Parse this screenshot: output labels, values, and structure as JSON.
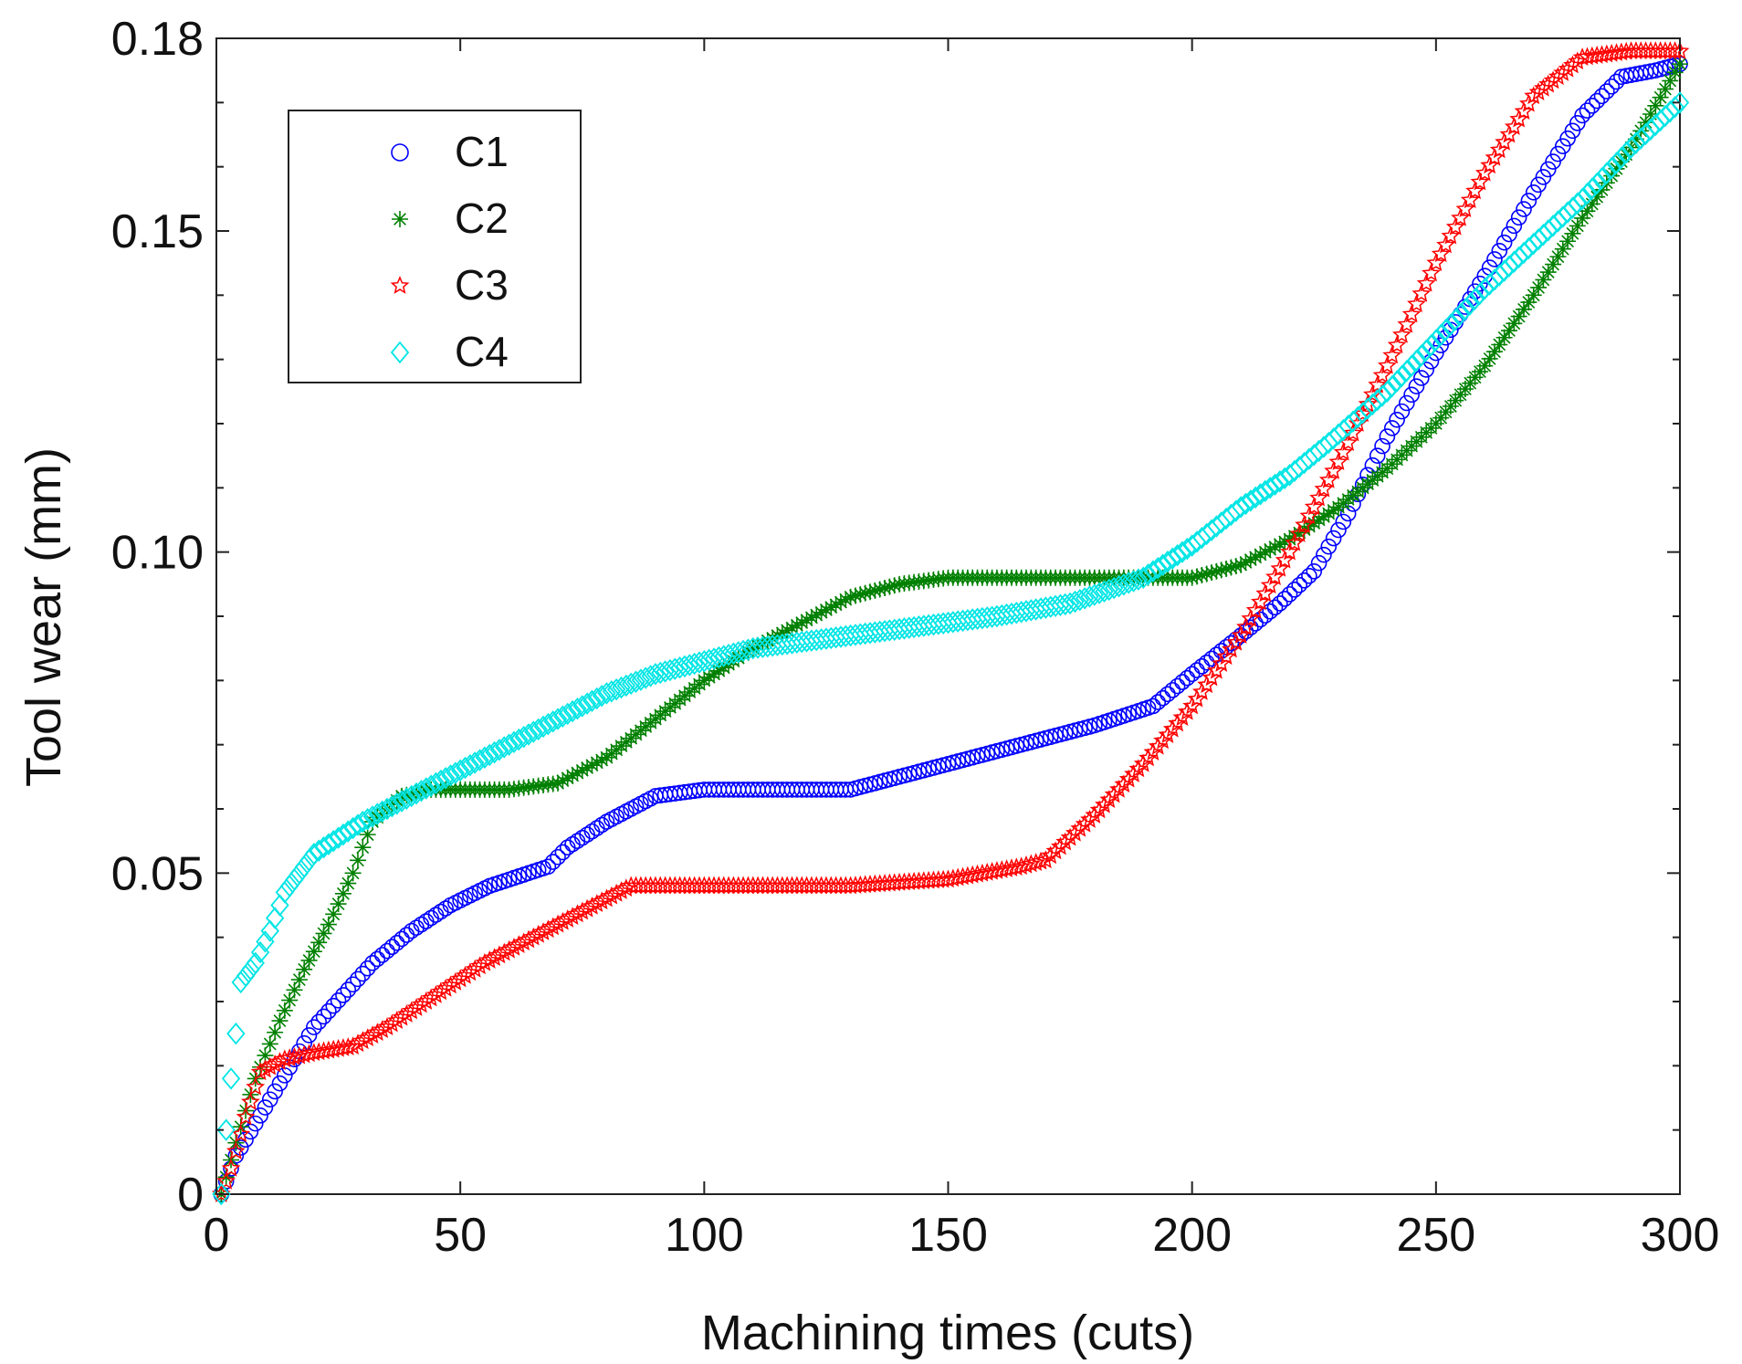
{
  "chart_data": {
    "type": "scatter",
    "title": "",
    "xlabel": "Machining times (cuts)",
    "ylabel": "Tool wear (mm)",
    "xlim": [
      0,
      300
    ],
    "ylim": [
      0,
      0.18
    ],
    "xticks": [
      0,
      50,
      100,
      150,
      200,
      250,
      300
    ],
    "xtick_labels": [
      "0",
      "50",
      "100",
      "150",
      "200",
      "250",
      "300"
    ],
    "yticks": [
      0,
      0.05,
      0.1,
      0.15,
      0.18
    ],
    "ytick_labels": [
      "0",
      "0.05",
      "0.10",
      "0.15",
      "0.18"
    ],
    "grid": false,
    "legend_position": "top-left",
    "series": [
      {
        "name": "C1",
        "marker": "circle",
        "color": "#0000ff",
        "points": [
          [
            1,
            0
          ],
          [
            4,
            0.006
          ],
          [
            8,
            0.011
          ],
          [
            12,
            0.016
          ],
          [
            16,
            0.021
          ],
          [
            20,
            0.026
          ],
          [
            26,
            0.031
          ],
          [
            32,
            0.036
          ],
          [
            40,
            0.041
          ],
          [
            48,
            0.045
          ],
          [
            56,
            0.048
          ],
          [
            64,
            0.05
          ],
          [
            68,
            0.051
          ],
          [
            72,
            0.054
          ],
          [
            80,
            0.058
          ],
          [
            90,
            0.062
          ],
          [
            100,
            0.063
          ],
          [
            110,
            0.063
          ],
          [
            120,
            0.063
          ],
          [
            130,
            0.063
          ],
          [
            140,
            0.065
          ],
          [
            150,
            0.067
          ],
          [
            160,
            0.069
          ],
          [
            170,
            0.071
          ],
          [
            180,
            0.073
          ],
          [
            192,
            0.076
          ],
          [
            200,
            0.081
          ],
          [
            210,
            0.087
          ],
          [
            218,
            0.092
          ],
          [
            225,
            0.097
          ],
          [
            232,
            0.106
          ],
          [
            240,
            0.118
          ],
          [
            250,
            0.131
          ],
          [
            260,
            0.143
          ],
          [
            270,
            0.156
          ],
          [
            280,
            0.168
          ],
          [
            288,
            0.174
          ],
          [
            295,
            0.175
          ],
          [
            300,
            0.176
          ]
        ]
      },
      {
        "name": "C2",
        "marker": "asterisk",
        "color": "#008000",
        "points": [
          [
            1,
            0
          ],
          [
            4,
            0.008
          ],
          [
            8,
            0.018
          ],
          [
            13,
            0.027
          ],
          [
            18,
            0.035
          ],
          [
            23,
            0.042
          ],
          [
            28,
            0.05
          ],
          [
            32,
            0.058
          ],
          [
            38,
            0.062
          ],
          [
            44,
            0.063
          ],
          [
            50,
            0.063
          ],
          [
            60,
            0.063
          ],
          [
            70,
            0.064
          ],
          [
            80,
            0.068
          ],
          [
            90,
            0.074
          ],
          [
            100,
            0.08
          ],
          [
            110,
            0.085
          ],
          [
            120,
            0.089
          ],
          [
            130,
            0.093
          ],
          [
            140,
            0.095
          ],
          [
            150,
            0.096
          ],
          [
            160,
            0.096
          ],
          [
            170,
            0.096
          ],
          [
            180,
            0.096
          ],
          [
            190,
            0.096
          ],
          [
            200,
            0.096
          ],
          [
            210,
            0.098
          ],
          [
            220,
            0.102
          ],
          [
            230,
            0.107
          ],
          [
            240,
            0.113
          ],
          [
            250,
            0.12
          ],
          [
            260,
            0.129
          ],
          [
            270,
            0.14
          ],
          [
            280,
            0.152
          ],
          [
            290,
            0.163
          ],
          [
            300,
            0.176
          ]
        ]
      },
      {
        "name": "C3",
        "marker": "star",
        "color": "#ff0000",
        "points": [
          [
            1,
            0
          ],
          [
            3,
            0.004
          ],
          [
            6,
            0.012
          ],
          [
            9,
            0.019
          ],
          [
            14,
            0.021
          ],
          [
            20,
            0.022
          ],
          [
            28,
            0.023
          ],
          [
            35,
            0.026
          ],
          [
            45,
            0.031
          ],
          [
            55,
            0.036
          ],
          [
            65,
            0.04
          ],
          [
            75,
            0.044
          ],
          [
            85,
            0.048
          ],
          [
            95,
            0.048
          ],
          [
            110,
            0.048
          ],
          [
            130,
            0.048
          ],
          [
            150,
            0.049
          ],
          [
            165,
            0.051
          ],
          [
            170,
            0.052
          ],
          [
            180,
            0.059
          ],
          [
            190,
            0.067
          ],
          [
            200,
            0.076
          ],
          [
            210,
            0.087
          ],
          [
            220,
            0.1
          ],
          [
            230,
            0.114
          ],
          [
            240,
            0.129
          ],
          [
            250,
            0.145
          ],
          [
            260,
            0.159
          ],
          [
            270,
            0.171
          ],
          [
            280,
            0.177
          ],
          [
            290,
            0.178
          ],
          [
            300,
            0.178
          ]
        ]
      },
      {
        "name": "C4",
        "marker": "diamond",
        "color": "#00e5e5",
        "points": [
          [
            1,
            0
          ],
          [
            2,
            0.01
          ],
          [
            3,
            0.018
          ],
          [
            4,
            0.025
          ],
          [
            5,
            0.033
          ],
          [
            8,
            0.036
          ],
          [
            11,
            0.041
          ],
          [
            14,
            0.047
          ],
          [
            20,
            0.053
          ],
          [
            30,
            0.058
          ],
          [
            40,
            0.062
          ],
          [
            50,
            0.066
          ],
          [
            60,
            0.07
          ],
          [
            70,
            0.074
          ],
          [
            80,
            0.078
          ],
          [
            90,
            0.081
          ],
          [
            100,
            0.083
          ],
          [
            110,
            0.085
          ],
          [
            120,
            0.086
          ],
          [
            130,
            0.087
          ],
          [
            140,
            0.088
          ],
          [
            150,
            0.089
          ],
          [
            160,
            0.09
          ],
          [
            175,
            0.092
          ],
          [
            190,
            0.096
          ],
          [
            200,
            0.101
          ],
          [
            210,
            0.107
          ],
          [
            220,
            0.112
          ],
          [
            228,
            0.117
          ],
          [
            240,
            0.125
          ],
          [
            250,
            0.133
          ],
          [
            260,
            0.141
          ],
          [
            270,
            0.148
          ],
          [
            280,
            0.155
          ],
          [
            290,
            0.163
          ],
          [
            300,
            0.17
          ]
        ]
      }
    ]
  }
}
